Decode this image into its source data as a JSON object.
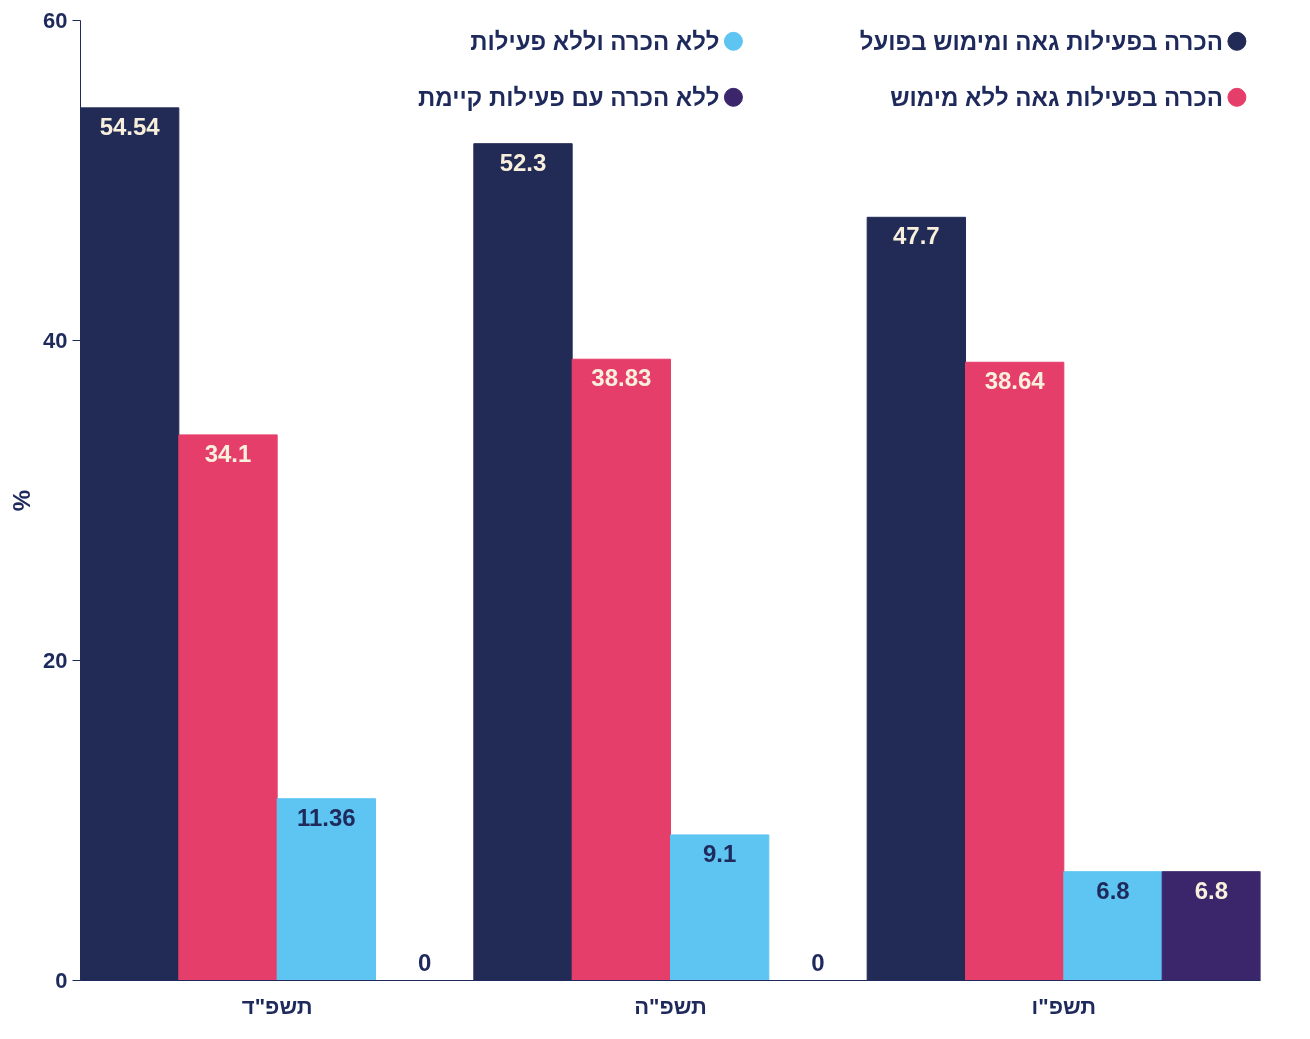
{
  "chart_data": {
    "type": "bar",
    "ylabel": "%",
    "categories": [
      "תשפ\"ד",
      "תשפ\"ה",
      "תשפ\"ו"
    ],
    "series": [
      {
        "name": "הכרה בפעילות גאה ומימוש בפועל",
        "color": "#212b55",
        "values": [
          54.54,
          52.3,
          47.7
        ]
      },
      {
        "name": "הכרה בפעילות גאה ללא מימוש",
        "color": "#e63e6a",
        "values": [
          34.1,
          38.83,
          38.64
        ]
      },
      {
        "name": "ללא הכרה וללא פעילות",
        "color": "#5ec5f2",
        "values": [
          11.36,
          9.1,
          6.8
        ]
      },
      {
        "name": "ללא הכרה עם פעילות קיימת",
        "color": "#3b266b",
        "values": [
          0,
          0,
          6.8
        ]
      }
    ],
    "ylim": [
      0,
      60
    ],
    "yticks": [
      0,
      20,
      40,
      60
    ],
    "grid": false,
    "legend": "top right",
    "data_labels": true
  }
}
